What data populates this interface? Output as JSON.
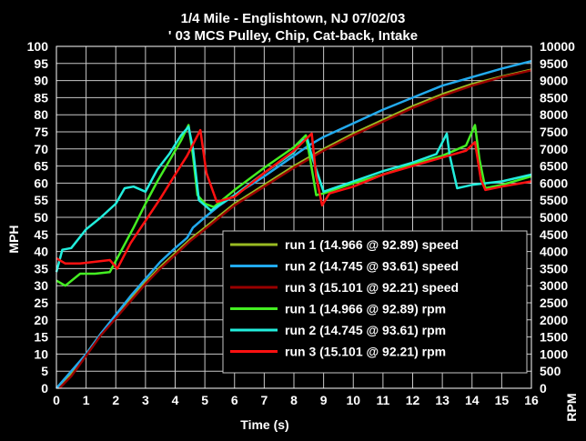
{
  "chart_data": {
    "type": "line",
    "title": "1/4 Mile - Englishtown, NJ 07/02/03",
    "subtitle": "' 03 MCS Pulley, Chip, Cat-back, Intake",
    "xlabel": "Time (s)",
    "ylabel": "MPH",
    "y2label": "RPM",
    "xlim": [
      0,
      16
    ],
    "ylim": [
      0,
      100
    ],
    "y2lim": [
      0,
      10000
    ],
    "xticks": [
      "0",
      "1",
      "2",
      "3",
      "4",
      "5",
      "6",
      "7",
      "8",
      "9",
      "10",
      "11",
      "12",
      "13",
      "14",
      "15",
      "16"
    ],
    "yticks": [
      "0",
      "5",
      "10",
      "15",
      "20",
      "25",
      "30",
      "35",
      "40",
      "45",
      "50",
      "55",
      "60",
      "65",
      "70",
      "75",
      "80",
      "85",
      "90",
      "95",
      "100"
    ],
    "y2ticks": [
      "0",
      "500",
      "1000",
      "1500",
      "2000",
      "2500",
      "3000",
      "3500",
      "4000",
      "4500",
      "5000",
      "5500",
      "6000",
      "6500",
      "7000",
      "7500",
      "8000",
      "8500",
      "9000",
      "9500",
      "10000"
    ],
    "grid": true,
    "legend_position": "bottom-right",
    "colors": {
      "background": "#000000",
      "grid": "#c8c8c8",
      "legend_bg": "#000000"
    },
    "series": [
      {
        "name": "run 1 (14.966 @ 92.89) speed",
        "axis": "left",
        "color": "#99bb22",
        "x": [
          0.05,
          0.5,
          1,
          1.5,
          2,
          2.5,
          3,
          3.5,
          4,
          4.5,
          5,
          5.5,
          6,
          7,
          8,
          9,
          10,
          11,
          12,
          13,
          14,
          15,
          16
        ],
        "y": [
          0,
          4,
          10,
          16,
          21,
          26,
          31,
          35.5,
          39.5,
          43.5,
          47,
          50.5,
          54,
          59.5,
          65,
          70,
          74.5,
          78.5,
          82.5,
          86,
          89,
          91.2,
          93.2
        ]
      },
      {
        "name": "run 2 (14.745 @ 93.61) speed",
        "axis": "left",
        "color": "#22aaee",
        "x": [
          0,
          0.5,
          1,
          1.5,
          2,
          2.5,
          3,
          3.5,
          4,
          4.4,
          4.6,
          5,
          5.5,
          6,
          7,
          8,
          8.5,
          9,
          10,
          11,
          12,
          13,
          14,
          15,
          16
        ],
        "y": [
          0,
          5,
          10,
          16,
          21.5,
          27,
          32,
          37,
          41,
          44,
          47,
          50,
          53.5,
          56.5,
          62,
          68,
          71,
          73.5,
          77.5,
          81.5,
          85,
          88.5,
          91,
          93.5,
          95.7
        ]
      },
      {
        "name": "run 3 (15.101 @ 92.21) speed",
        "axis": "left",
        "color": "#990000",
        "x": [
          0.1,
          0.5,
          1,
          1.5,
          2,
          2.5,
          3,
          3.5,
          4,
          4.5,
          5,
          5.5,
          6,
          7,
          8,
          9,
          10,
          11,
          12,
          13,
          14,
          15,
          16
        ],
        "y": [
          0,
          3.5,
          9.5,
          15.5,
          20.5,
          25.5,
          30.5,
          35,
          39,
          43,
          46.5,
          50,
          53.5,
          59,
          64.5,
          69.5,
          74,
          78,
          82,
          85.5,
          88.5,
          91,
          93
        ]
      },
      {
        "name": "run 1 (14.966 @ 92.89) rpm",
        "axis": "right",
        "color": "#44ee22",
        "x": [
          0,
          0.3,
          0.8,
          1.3,
          1.8,
          2.2,
          2.6,
          3,
          3.4,
          3.8,
          4.2,
          4.45,
          4.6,
          4.75,
          5,
          5.3,
          6,
          7,
          8,
          8.4,
          8.55,
          8.75,
          9,
          10,
          11,
          12,
          13,
          13.8,
          14.1,
          14.25,
          14.45,
          15,
          16
        ],
        "y": [
          3150,
          3000,
          3350,
          3350,
          3400,
          4050,
          4700,
          5400,
          6050,
          6650,
          7250,
          7700,
          6800,
          5650,
          5400,
          5300,
          5800,
          6450,
          7050,
          7400,
          6700,
          5650,
          5700,
          6000,
          6250,
          6550,
          6800,
          7100,
          7700,
          6700,
          5850,
          5950,
          6200
        ]
      },
      {
        "name": "run 2 (14.745 @ 93.61) rpm",
        "axis": "right",
        "color": "#22eedd",
        "x": [
          0,
          0.2,
          0.5,
          1,
          1.5,
          2,
          2.3,
          2.6,
          3,
          3.4,
          3.8,
          4.2,
          4.45,
          4.6,
          4.8,
          5.2,
          6,
          7,
          8,
          8.3,
          8.45,
          8.6,
          9,
          10,
          11,
          12,
          12.8,
          13.15,
          13.25,
          13.5,
          14,
          15,
          16
        ],
        "y": [
          3400,
          4050,
          4100,
          4650,
          5000,
          5400,
          5850,
          5900,
          5750,
          6400,
          6850,
          7400,
          7650,
          7000,
          5500,
          5200,
          5650,
          6300,
          6900,
          7250,
          7300,
          6800,
          5750,
          6050,
          6350,
          6600,
          6850,
          7450,
          6800,
          5850,
          5950,
          6050,
          6250
        ]
      },
      {
        "name": "run 3 (15.101 @ 92.21) rpm",
        "axis": "right",
        "color": "#ff1111",
        "x": [
          0,
          0.3,
          0.8,
          1.3,
          1.8,
          2.05,
          2.5,
          3,
          3.5,
          4,
          4.4,
          4.7,
          4.85,
          5.05,
          5.4,
          6,
          7,
          8,
          8.6,
          8.75,
          8.95,
          9.2,
          10,
          11,
          12,
          13,
          13.8,
          14.1,
          14.3,
          14.45,
          15,
          16
        ],
        "y": [
          3800,
          3650,
          3650,
          3700,
          3750,
          3500,
          4250,
          4900,
          5550,
          6250,
          6800,
          7300,
          7550,
          6300,
          5450,
          5600,
          6300,
          6950,
          7450,
          6200,
          5350,
          5700,
          5900,
          6250,
          6500,
          6750,
          6950,
          7200,
          6100,
          5800,
          5900,
          6050
        ]
      }
    ]
  }
}
